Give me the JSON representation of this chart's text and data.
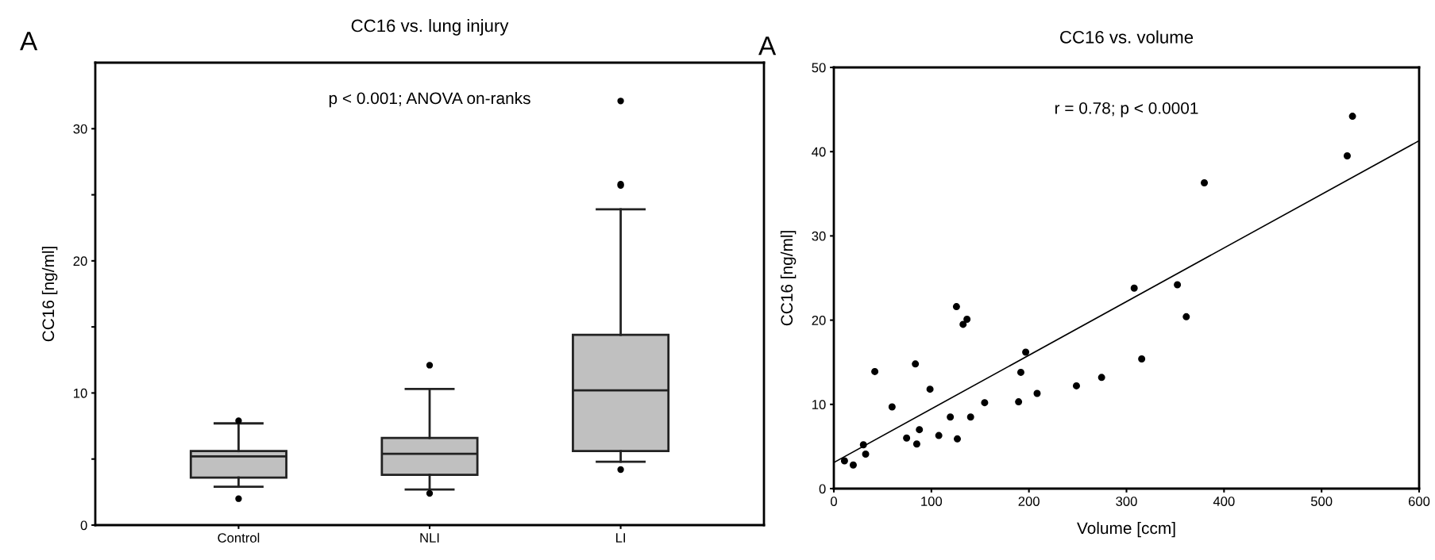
{
  "chart_data": [
    {
      "type": "box",
      "title": "CC16 vs. lung injury",
      "ylabel": "CC16 [ng/ml]",
      "categories": [
        "Control",
        "NLI",
        "LI"
      ],
      "series": [
        {
          "color": "#c0c0c0",
          "boxes": [
            {
              "low": 2.9,
              "q1": 3.6,
              "median": 5.2,
              "q3": 5.6,
              "high": 7.7,
              "outliers": [
                2.0,
                7.9
              ]
            },
            {
              "low": 2.7,
              "q1": 3.8,
              "median": 5.4,
              "q3": 6.6,
              "high": 10.3,
              "outliers": [
                12.1,
                2.4
              ]
            },
            {
              "low": 4.8,
              "q1": 5.6,
              "median": 10.2,
              "q3": 14.4,
              "high": 23.9,
              "outliers": [
                4.2,
                25.7,
                25.8,
                32.1
              ]
            }
          ]
        }
      ],
      "ylim": [
        0,
        35
      ],
      "yticks": [
        0,
        {
          "value": 5,
          "label": null
        },
        10,
        {
          "value": 15,
          "label": null
        },
        20,
        {
          "value": 25,
          "label": null
        },
        30
      ],
      "grid": false,
      "annotations": [
        "A",
        "p < 0.001; ANOVA on-ranks"
      ]
    },
    {
      "type": "scatter",
      "title": "CC16 vs. volume",
      "xlabel": "Volume [ccm]",
      "ylabel": "CC16 [ng/ml]",
      "series": [
        {
          "type": "scatter",
          "color": "#000000",
          "marker": "circle",
          "x": [
            10.9,
            19.9,
            30.3,
            32.6,
            42,
            59.7,
            74.6,
            83.6,
            85,
            87.7,
            98.6,
            107.6,
            119.4,
            125.7,
            126.6,
            132.5,
            136.5,
            140.2,
            154.6,
            189.4,
            191.7,
            196.7,
            208.4,
            248.7,
            274.5,
            307.9,
            315.6,
            352.2,
            361.3,
            379.8,
            526.3,
            531.7
          ],
          "values": [
            3.3,
            2.8,
            5.2,
            4.1,
            13.9,
            9.7,
            6.0,
            14.8,
            5.3,
            7.0,
            11.8,
            6.3,
            8.5,
            21.6,
            5.9,
            19.5,
            20.1,
            8.5,
            10.2,
            10.3,
            13.8,
            16.2,
            11.3,
            12.2,
            13.2,
            23.8,
            15.4,
            24.2,
            20.4,
            36.3,
            39.5,
            44.2
          ]
        },
        {
          "type": "line",
          "color": "#000000",
          "marker": "none",
          "x": [
            0,
            600
          ],
          "values": [
            3.1,
            41.3
          ]
        }
      ],
      "xlim": [
        0,
        600
      ],
      "xticks": [
        0,
        100,
        200,
        300,
        400,
        500,
        600
      ],
      "ylim": [
        0,
        50
      ],
      "yticks": [
        0,
        10,
        20,
        30,
        40,
        50
      ],
      "grid": false,
      "annotations": [
        "A",
        "r = 0.78; p < 0.0001"
      ]
    }
  ]
}
